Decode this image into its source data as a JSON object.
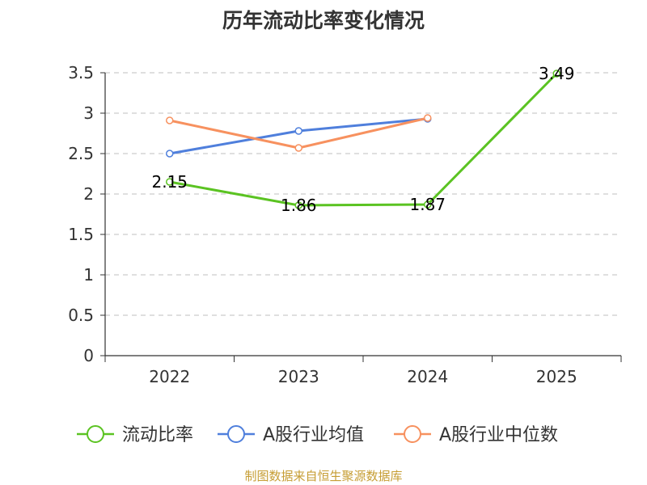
{
  "chart_data": {
    "type": "line",
    "title": "历年流动比率变化情况",
    "categories": [
      "2022",
      "2023",
      "2024",
      "2025"
    ],
    "ylim": [
      0,
      3.5
    ],
    "yticks": [
      "0",
      "0.5",
      "1",
      "1.5",
      "2",
      "2.5",
      "3",
      "3.5"
    ],
    "xlabel": "",
    "ylabel": "",
    "grid": true,
    "legend_position": "bottom",
    "series": [
      {
        "name": "流动比率",
        "color": "#5bc322",
        "values": [
          2.15,
          1.86,
          1.87,
          3.49
        ],
        "labels": [
          "2.15",
          "1.86",
          "1.87",
          "3.49"
        ]
      },
      {
        "name": "A股行业均值",
        "color": "#4f7fdc",
        "values": [
          2.5,
          2.78,
          2.93,
          null
        ]
      },
      {
        "name": "A股行业中位数",
        "color": "#f7915f",
        "values": [
          2.91,
          2.57,
          2.94,
          null
        ]
      }
    ]
  },
  "footer": {
    "source": "制图数据来自恒生聚源数据库"
  }
}
